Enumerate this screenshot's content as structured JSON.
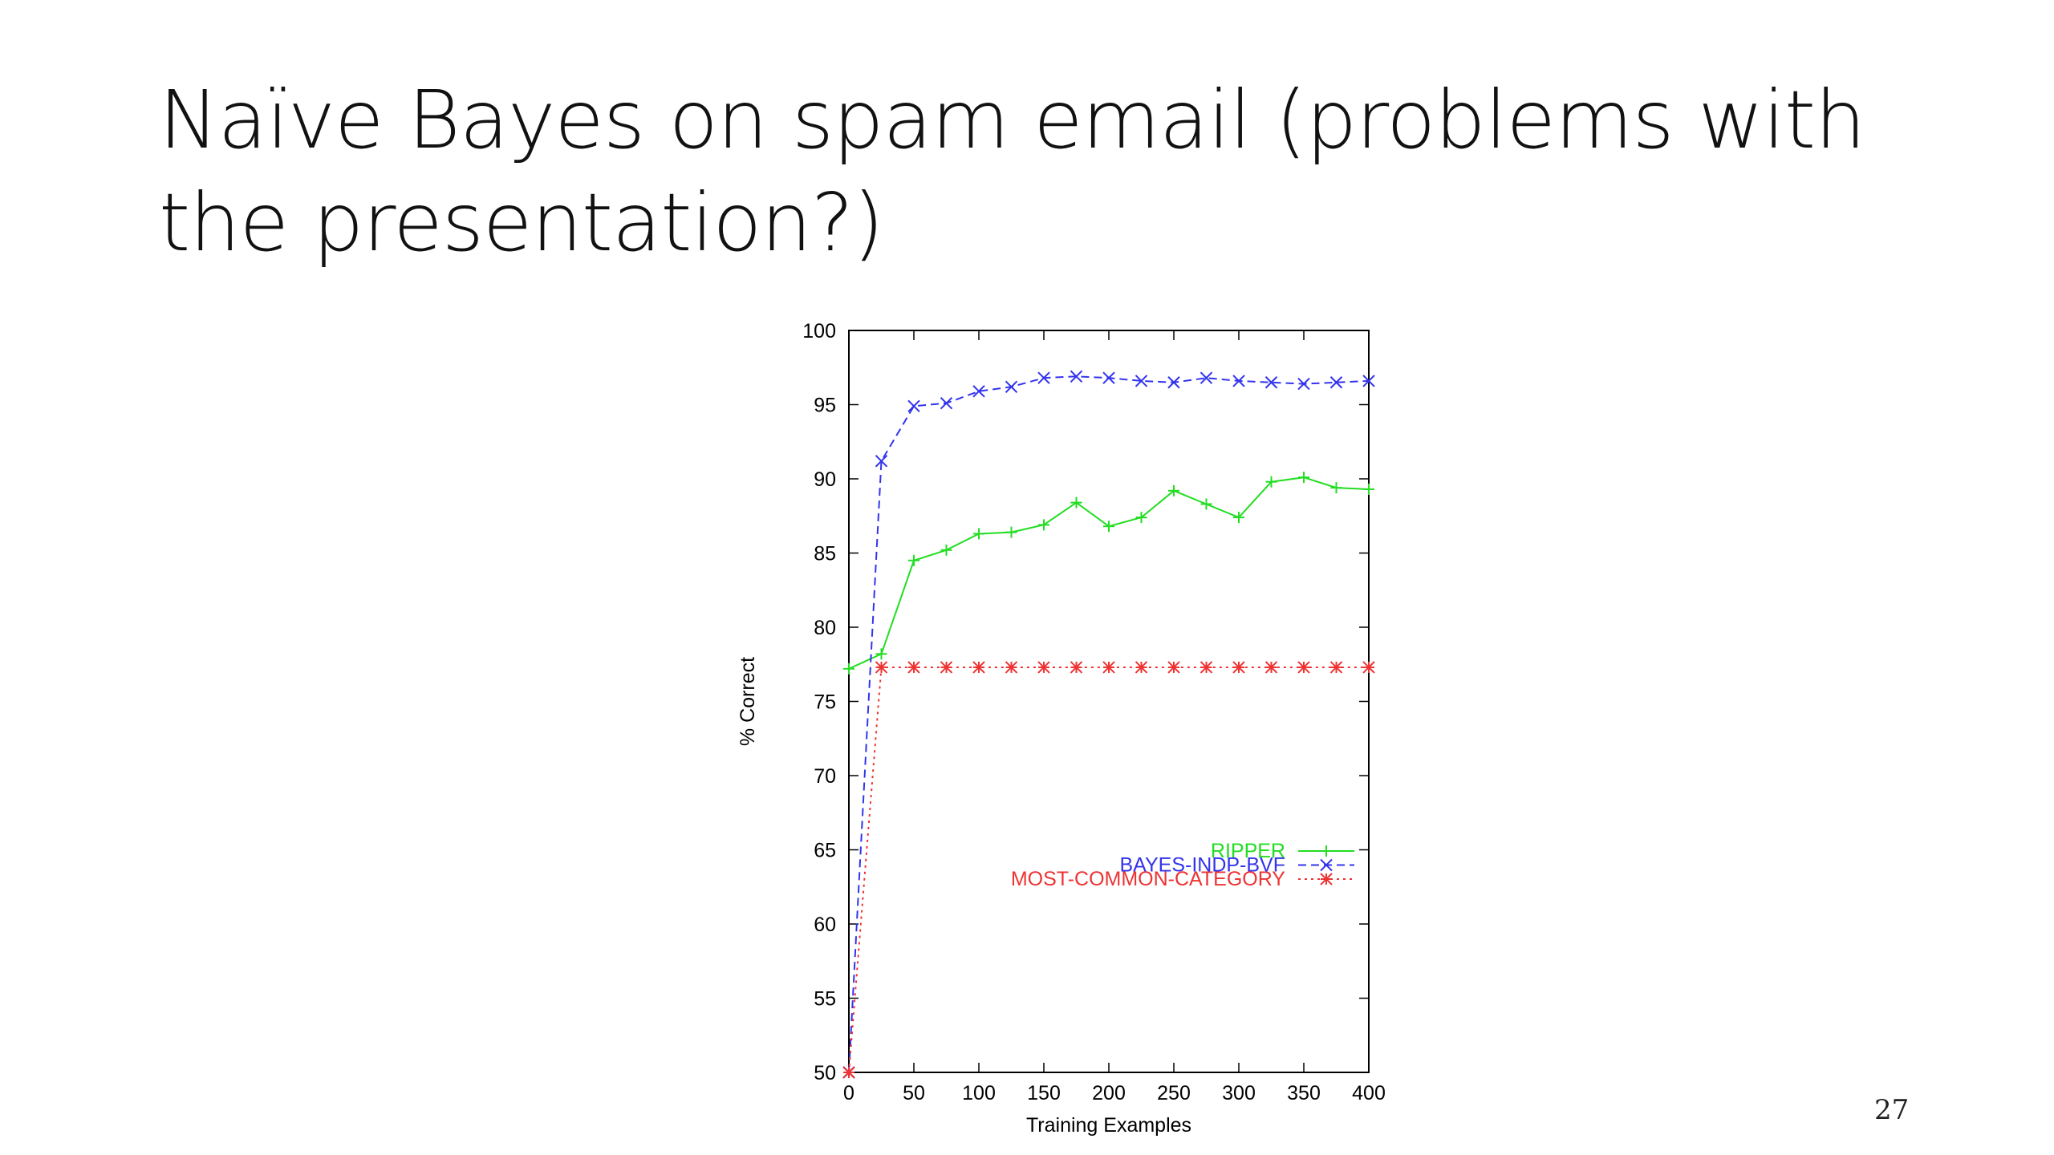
{
  "slide": {
    "title": "Naïve Bayes on spam email (problems with the presentation?)",
    "page_number": "27"
  },
  "chart_data": {
    "type": "line",
    "xlabel": "Training Examples",
    "ylabel": "% Correct",
    "xlim": [
      0,
      400
    ],
    "ylim": [
      50,
      100
    ],
    "xticks": [
      0,
      50,
      100,
      150,
      200,
      250,
      300,
      350,
      400
    ],
    "yticks": [
      50,
      55,
      60,
      65,
      70,
      75,
      80,
      85,
      90,
      95,
      100
    ],
    "grid": false,
    "legend_position": "bottom-right",
    "series": [
      {
        "name": "RIPPER",
        "color": "#22dd22",
        "line_style": "solid",
        "marker": "plus",
        "points": [
          [
            0,
            77.2
          ],
          [
            25,
            78.2
          ],
          [
            50,
            84.5
          ],
          [
            75,
            85.2
          ],
          [
            100,
            86.3
          ],
          [
            125,
            86.4
          ],
          [
            150,
            86.9
          ],
          [
            175,
            88.4
          ],
          [
            200,
            86.8
          ],
          [
            225,
            87.4
          ],
          [
            250,
            89.2
          ],
          [
            275,
            88.3
          ],
          [
            300,
            87.4
          ],
          [
            325,
            89.8
          ],
          [
            350,
            90.1
          ],
          [
            375,
            89.4
          ],
          [
            400,
            89.3
          ]
        ]
      },
      {
        "name": "BAYES-INDP-BVF",
        "color": "#3333ee",
        "line_style": "dashed",
        "marker": "x",
        "points": [
          [
            0,
            50
          ],
          [
            25,
            91.2
          ],
          [
            50,
            94.9
          ],
          [
            75,
            95.1
          ],
          [
            100,
            95.9
          ],
          [
            125,
            96.2
          ],
          [
            150,
            96.8
          ],
          [
            175,
            96.9
          ],
          [
            200,
            96.8
          ],
          [
            225,
            96.6
          ],
          [
            250,
            96.5
          ],
          [
            275,
            96.8
          ],
          [
            300,
            96.6
          ],
          [
            325,
            96.5
          ],
          [
            350,
            96.4
          ],
          [
            375,
            96.5
          ],
          [
            400,
            96.6
          ]
        ]
      },
      {
        "name": "MOST-COMMON-CATEGORY",
        "color": "#ee3333",
        "line_style": "dotted",
        "marker": "star",
        "points": [
          [
            0,
            50
          ],
          [
            25,
            77.3
          ],
          [
            50,
            77.3
          ],
          [
            75,
            77.3
          ],
          [
            100,
            77.3
          ],
          [
            125,
            77.3
          ],
          [
            150,
            77.3
          ],
          [
            175,
            77.3
          ],
          [
            200,
            77.3
          ],
          [
            225,
            77.3
          ],
          [
            250,
            77.3
          ],
          [
            275,
            77.3
          ],
          [
            300,
            77.3
          ],
          [
            325,
            77.3
          ],
          [
            350,
            77.3
          ],
          [
            375,
            77.3
          ],
          [
            400,
            77.3
          ]
        ]
      }
    ]
  }
}
